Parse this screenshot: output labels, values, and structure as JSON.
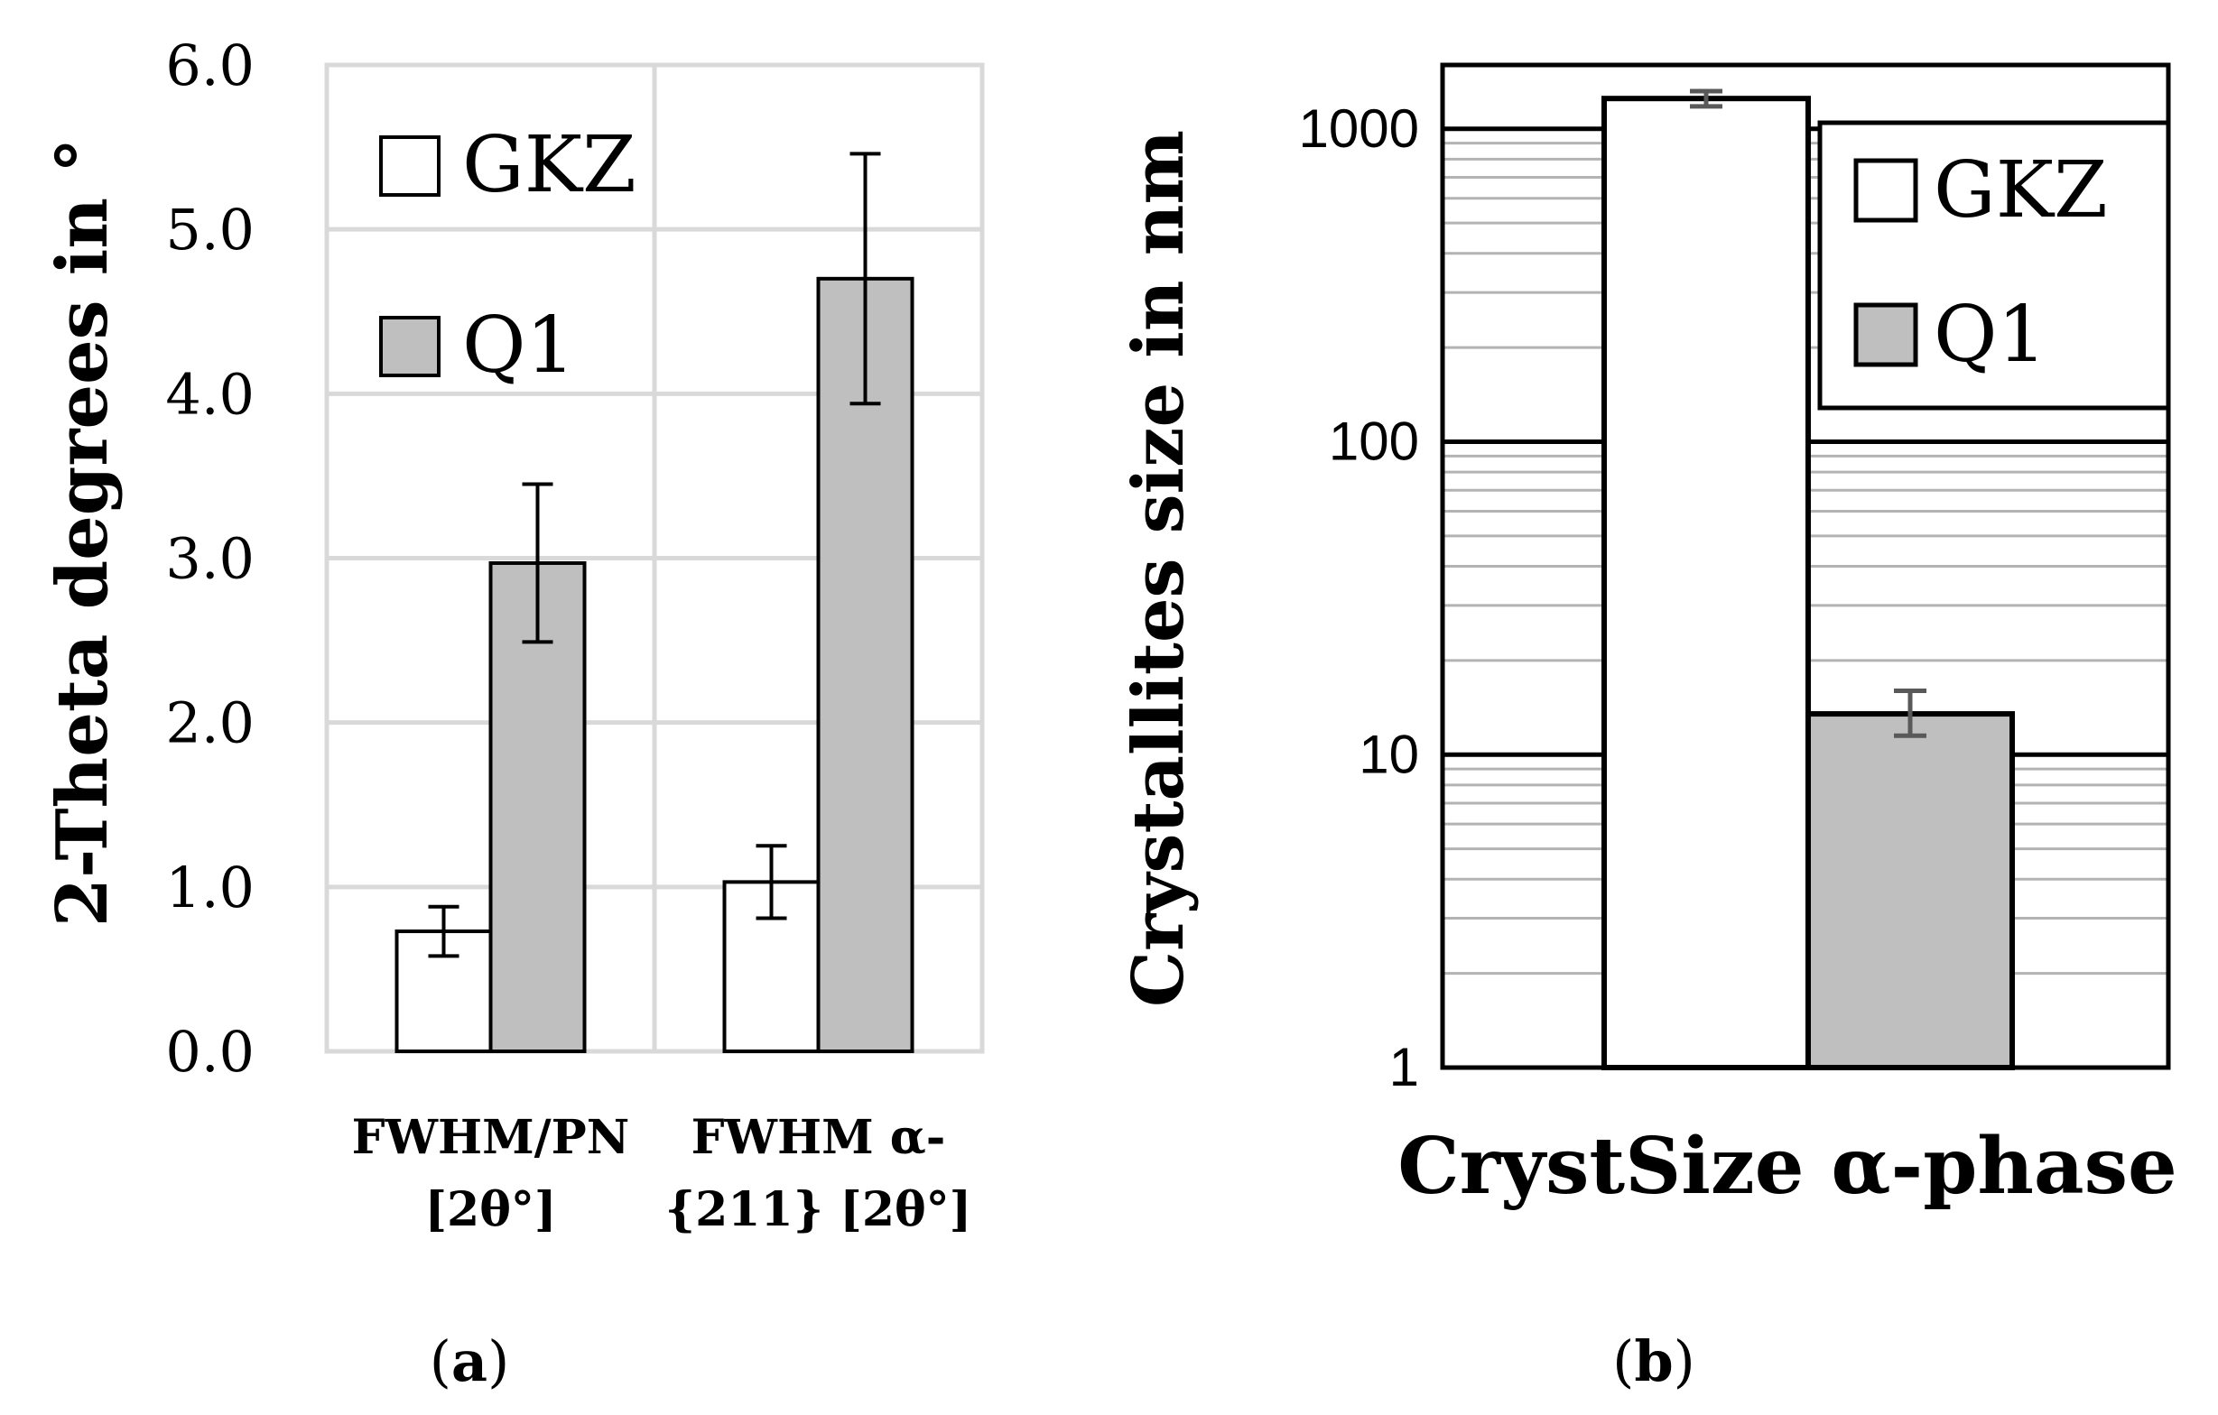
{
  "colors": {
    "gkz_fill": "#ffffff",
    "q1_fill": "#bfbfbf",
    "bar_stroke": "#000000",
    "grid_a": "#d9d9d9",
    "grid_b": "#b3b3b3",
    "text": "#000000",
    "errbar_b": "#595959"
  },
  "chart_data": [
    {
      "panel": "a",
      "panel_label": "(a)",
      "panel_letter": "a",
      "type": "bar",
      "title": "",
      "xlabel": "",
      "ylabel": "2-Theta degrees in °",
      "ylim": [
        0,
        6
      ],
      "yticks": [
        0,
        1,
        2,
        3,
        4,
        5,
        6
      ],
      "ytick_labels": [
        "0.0",
        "1.0",
        "2.0",
        "3.0",
        "4.0",
        "5.0",
        "6.0"
      ],
      "grid": true,
      "legend_position": "top-left",
      "categories": [
        {
          "line1": "FWHM/PN",
          "line2": "[2θ°]"
        },
        {
          "line1": "FWHM α-",
          "line2": "{211}  [2θ°]"
        }
      ],
      "series": [
        {
          "name": "GKZ",
          "values": [
            0.73,
            1.03
          ],
          "errors": [
            0.15,
            0.22
          ]
        },
        {
          "name": "Q1",
          "values": [
            2.97,
            4.7
          ],
          "errors": [
            0.48,
            0.76
          ]
        }
      ]
    },
    {
      "panel": "b",
      "panel_label": "(b)",
      "panel_letter": "b",
      "type": "bar",
      "title": "",
      "xlabel": "CrystSize α-phase",
      "ylabel": "Crystallites size in nm",
      "yscale": "log",
      "ylim": [
        1,
        1600
      ],
      "yticks": [
        1,
        10,
        100,
        1000
      ],
      "ytick_labels": [
        "1",
        "10",
        "100",
        "1000"
      ],
      "grid": true,
      "legend_position": "top-right",
      "categories": [
        "CrystSize α-phase"
      ],
      "series": [
        {
          "name": "GKZ",
          "values": [
            1250
          ],
          "error_low": [
            1180
          ],
          "error_high": [
            1320
          ]
        },
        {
          "name": "Q1",
          "values": [
            13.5
          ],
          "error_low": [
            11.5
          ],
          "error_high": [
            16
          ]
        }
      ]
    }
  ]
}
